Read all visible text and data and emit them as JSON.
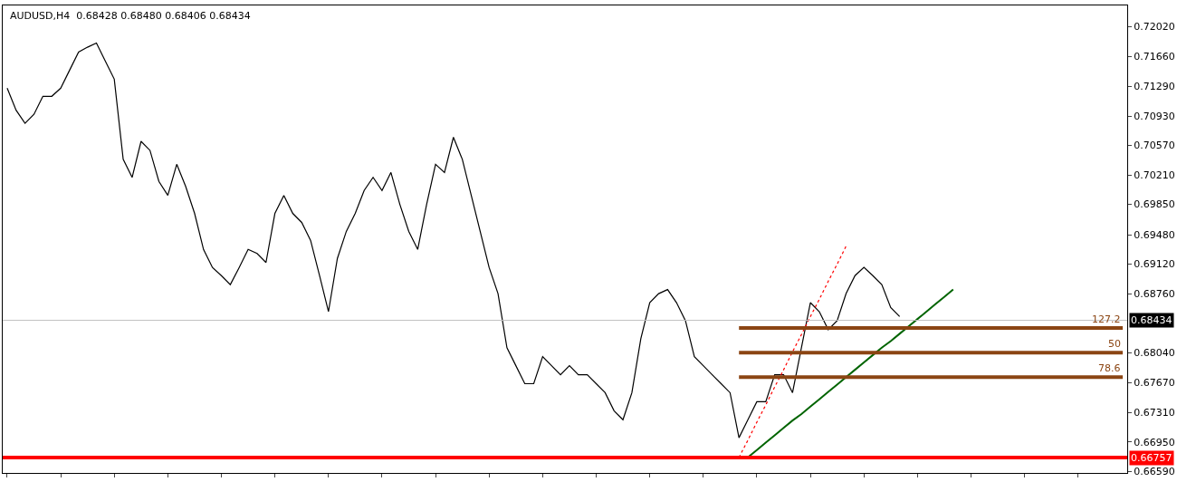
{
  "chart_data": {
    "type": "line",
    "title": "AUDUSD,H4  0.68428 0.68480 0.68406 0.68434",
    "categories": [
      null,
      null,
      null,
      null,
      null,
      null,
      null,
      null,
      null,
      null,
      null,
      null,
      null,
      null,
      null,
      null,
      null,
      null,
      null,
      null,
      null,
      null,
      null,
      null,
      null,
      null,
      null,
      null,
      null,
      null,
      null,
      null,
      null,
      null,
      null,
      null,
      null,
      null,
      null,
      null,
      null,
      null,
      null,
      null,
      null,
      null,
      null,
      null,
      null,
      null,
      null,
      null,
      null,
      null,
      null,
      null,
      null,
      null,
      null,
      null,
      null,
      null,
      null,
      null,
      null,
      null,
      null,
      null,
      null,
      null,
      null,
      null,
      null,
      null,
      null,
      null,
      null,
      null,
      null,
      null,
      null,
      null,
      null,
      null,
      null,
      null,
      null,
      null,
      null,
      null,
      null,
      null,
      null,
      null,
      null,
      null,
      null,
      null,
      null,
      null,
      null,
      null,
      null,
      null,
      null,
      null,
      null,
      null,
      null,
      null,
      null,
      null,
      null,
      null,
      null,
      null,
      null,
      null,
      null,
      null,
      null,
      null,
      null,
      null,
      null,
      null
    ],
    "series": [
      {
        "color": "#000000",
        "values": [
          0.7127,
          0.71,
          0.7084,
          0.7095,
          0.7117,
          0.7117,
          0.7127,
          0.7149,
          0.7171,
          0.7177,
          0.7182,
          0.716,
          0.7138,
          0.704,
          0.7018,
          0.7062,
          0.7051,
          0.7013,
          0.6996,
          0.7034,
          0.7007,
          0.6974,
          0.693,
          0.6908,
          0.6898,
          0.6887,
          0.6908,
          0.693,
          0.6925,
          0.6914,
          0.6974,
          0.6996,
          0.6974,
          0.6963,
          0.6941,
          0.6898,
          0.6854,
          0.6919,
          0.6952,
          0.6974,
          0.7002,
          0.7018,
          0.7002,
          0.7024,
          0.6985,
          0.6952,
          0.693,
          0.6985,
          0.7034,
          0.7024,
          0.7067,
          0.704,
          0.6996,
          0.6952,
          0.6908,
          0.6876,
          0.681,
          0.6788,
          0.6766,
          0.6766,
          0.6799,
          0.6788,
          0.6777,
          0.6788,
          0.6777,
          0.6777,
          0.6766,
          0.6755,
          0.6733,
          0.6722,
          0.6755,
          0.6821,
          0.6865,
          0.6876,
          0.6881,
          0.6865,
          0.6843,
          0.6799,
          0.6788,
          0.6777,
          0.6766,
          0.6755,
          0.67,
          0.6722,
          0.6744,
          0.6744,
          0.6777,
          0.6777,
          0.6755,
          0.681,
          0.6865,
          0.6854,
          0.6832,
          0.6843,
          0.6876,
          0.6898,
          0.6908,
          0.6898,
          0.6887,
          0.6859,
          0.6848,
          null,
          null,
          null,
          null,
          null,
          null,
          null,
          null,
          null,
          null,
          null,
          null,
          null,
          null,
          null,
          null,
          null,
          null,
          null,
          null,
          null,
          null,
          null,
          null,
          null
        ]
      },
      {
        "color": "#006400",
        "values": [
          null,
          null,
          null,
          null,
          null,
          null,
          null,
          null,
          null,
          null,
          null,
          null,
          null,
          null,
          null,
          null,
          null,
          null,
          null,
          null,
          null,
          null,
          null,
          null,
          null,
          null,
          null,
          null,
          null,
          null,
          null,
          null,
          null,
          null,
          null,
          null,
          null,
          null,
          null,
          null,
          null,
          null,
          null,
          null,
          null,
          null,
          null,
          null,
          null,
          null,
          null,
          null,
          null,
          null,
          null,
          null,
          null,
          null,
          null,
          null,
          null,
          null,
          null,
          null,
          null,
          null,
          null,
          null,
          null,
          null,
          null,
          null,
          null,
          null,
          null,
          null,
          null,
          null,
          null,
          null,
          null,
          null,
          null,
          0.6676,
          0.6685,
          0.6694,
          0.6703,
          0.6712,
          0.6721,
          0.6729,
          0.6738,
          0.6747,
          0.6756,
          0.6765,
          0.6774,
          0.6783,
          0.6792,
          0.6801,
          0.681,
          0.6818,
          0.6827,
          0.6836,
          0.6845,
          0.6854,
          0.6863,
          0.6872,
          0.6881,
          null,
          null,
          null,
          null,
          null,
          null,
          null,
          null,
          null,
          null,
          null,
          null,
          null,
          null,
          null,
          null,
          null,
          null,
          null
        ]
      },
      {
        "color": "#ff0000",
        "line_style": "dotted",
        "values": [
          null,
          null,
          null,
          null,
          null,
          null,
          null,
          null,
          null,
          null,
          null,
          null,
          null,
          null,
          null,
          null,
          null,
          null,
          null,
          null,
          null,
          null,
          null,
          null,
          null,
          null,
          null,
          null,
          null,
          null,
          null,
          null,
          null,
          null,
          null,
          null,
          null,
          null,
          null,
          null,
          null,
          null,
          null,
          null,
          null,
          null,
          null,
          null,
          null,
          null,
          null,
          null,
          null,
          null,
          null,
          null,
          null,
          null,
          null,
          null,
          null,
          null,
          null,
          null,
          null,
          null,
          null,
          null,
          null,
          null,
          null,
          null,
          null,
          null,
          null,
          null,
          null,
          null,
          null,
          null,
          null,
          null,
          0.6676,
          0.6697,
          0.6719,
          0.674,
          0.6762,
          0.6783,
          0.6805,
          0.6826,
          0.6848,
          0.6869,
          0.6891,
          0.6912,
          0.6934,
          null,
          null,
          null,
          null,
          null,
          null,
          null,
          null,
          null,
          null,
          null,
          null,
          null,
          null,
          null,
          null,
          null,
          null,
          null,
          null,
          null,
          null,
          null,
          null,
          null,
          null,
          null,
          null,
          null,
          null,
          null
        ]
      },
      {
        "name": "127.2",
        "color": "#8b4513",
        "values": [
          null,
          null,
          null,
          null,
          null,
          null,
          null,
          null,
          null,
          null,
          null,
          null,
          null,
          null,
          null,
          null,
          null,
          null,
          null,
          null,
          null,
          null,
          null,
          null,
          null,
          null,
          null,
          null,
          null,
          null,
          null,
          null,
          null,
          null,
          null,
          null,
          null,
          null,
          null,
          null,
          null,
          null,
          null,
          null,
          null,
          null,
          null,
          null,
          null,
          null,
          null,
          null,
          null,
          null,
          null,
          null,
          null,
          null,
          null,
          null,
          null,
          null,
          null,
          null,
          null,
          null,
          null,
          null,
          null,
          null,
          null,
          null,
          null,
          null,
          null,
          null,
          null,
          null,
          null,
          null,
          null,
          null,
          0.6834,
          0.6834,
          0.6834,
          0.6834,
          0.6834,
          0.6834,
          0.6834,
          0.6834,
          0.6834,
          0.6834,
          0.6834,
          0.6834,
          0.6834,
          0.6834,
          0.6834,
          0.6834,
          0.6834,
          0.6834,
          0.6834,
          0.6834,
          0.6834,
          0.6834,
          0.6834,
          0.6834,
          0.6834,
          0.6834,
          0.6834,
          0.6834,
          0.6834,
          0.6834,
          0.6834,
          0.6834,
          0.6834,
          0.6834,
          0.6834,
          0.6834,
          0.6834,
          0.6834,
          0.6834,
          0.6834,
          0.6834,
          0.6834,
          0.6834,
          0.6834
        ]
      },
      {
        "name": "50",
        "color": "#8b4513",
        "values": [
          null,
          null,
          null,
          null,
          null,
          null,
          null,
          null,
          null,
          null,
          null,
          null,
          null,
          null,
          null,
          null,
          null,
          null,
          null,
          null,
          null,
          null,
          null,
          null,
          null,
          null,
          null,
          null,
          null,
          null,
          null,
          null,
          null,
          null,
          null,
          null,
          null,
          null,
          null,
          null,
          null,
          null,
          null,
          null,
          null,
          null,
          null,
          null,
          null,
          null,
          null,
          null,
          null,
          null,
          null,
          null,
          null,
          null,
          null,
          null,
          null,
          null,
          null,
          null,
          null,
          null,
          null,
          null,
          null,
          null,
          null,
          null,
          null,
          null,
          null,
          null,
          null,
          null,
          null,
          null,
          null,
          null,
          0.6804,
          0.6804,
          0.6804,
          0.6804,
          0.6804,
          0.6804,
          0.6804,
          0.6804,
          0.6804,
          0.6804,
          0.6804,
          0.6804,
          0.6804,
          0.6804,
          0.6804,
          0.6804,
          0.6804,
          0.6804,
          0.6804,
          0.6804,
          0.6804,
          0.6804,
          0.6804,
          0.6804,
          0.6804,
          0.6804,
          0.6804,
          0.6804,
          0.6804,
          0.6804,
          0.6804,
          0.6804,
          0.6804,
          0.6804,
          0.6804,
          0.6804,
          0.6804,
          0.6804,
          0.6804,
          0.6804,
          0.6804,
          0.6804,
          0.6804,
          0.6804
        ]
      },
      {
        "name": "78.6",
        "color": "#8b4513",
        "values": [
          null,
          null,
          null,
          null,
          null,
          null,
          null,
          null,
          null,
          null,
          null,
          null,
          null,
          null,
          null,
          null,
          null,
          null,
          null,
          null,
          null,
          null,
          null,
          null,
          null,
          null,
          null,
          null,
          null,
          null,
          null,
          null,
          null,
          null,
          null,
          null,
          null,
          null,
          null,
          null,
          null,
          null,
          null,
          null,
          null,
          null,
          null,
          null,
          null,
          null,
          null,
          null,
          null,
          null,
          null,
          null,
          null,
          null,
          null,
          null,
          null,
          null,
          null,
          null,
          null,
          null,
          null,
          null,
          null,
          null,
          null,
          null,
          null,
          null,
          null,
          null,
          null,
          null,
          null,
          null,
          null,
          null,
          0.6774,
          0.6774,
          0.6774,
          0.6774,
          0.6774,
          0.6774,
          0.6774,
          0.6774,
          0.6774,
          0.6774,
          0.6774,
          0.6774,
          0.6774,
          0.6774,
          0.6774,
          0.6774,
          0.6774,
          0.6774,
          0.6774,
          0.6774,
          0.6774,
          0.6774,
          0.6774,
          0.6774,
          0.6774,
          0.6774,
          0.6774,
          0.6774,
          0.6774,
          0.6774,
          0.6774,
          0.6774,
          0.6774,
          0.6774,
          0.6774,
          0.6774,
          0.6774,
          0.6774,
          0.6774,
          0.6774,
          0.6774,
          0.6774,
          0.6774,
          0.6774
        ]
      }
    ],
    "ylim": [
      0.6657,
      0.7228
    ],
    "yticks": [
      {
        "value": 0.7202,
        "label": "0.72020"
      },
      {
        "value": 0.7166,
        "label": "0.71660"
      },
      {
        "value": 0.7129,
        "label": "0.71290"
      },
      {
        "value": 0.7093,
        "label": "0.70930"
      },
      {
        "value": 0.7057,
        "label": "0.70570"
      },
      {
        "value": 0.7021,
        "label": "0.70210"
      },
      {
        "value": 0.6985,
        "label": "0.69850"
      },
      {
        "value": 0.6948,
        "label": "0.69480"
      },
      {
        "value": 0.6912,
        "label": "0.69120"
      },
      {
        "value": 0.6876,
        "label": "0.68760"
      },
      {
        "value": 0.6804,
        "label": "0.68040"
      },
      {
        "value": 0.6767,
        "label": "0.67670"
      },
      {
        "value": 0.6731,
        "label": "0.67310"
      },
      {
        "value": 0.6695,
        "label": "0.66950"
      },
      {
        "value": 0.6659,
        "label": "0.66590"
      }
    ],
    "ref_lines": [
      {
        "axis": "y",
        "value": 0.68434,
        "label": "0.68434",
        "color": "#c0c0c0"
      },
      {
        "axis": "y",
        "value": 0.66757,
        "label": "0.66757",
        "color": "#ff0000"
      }
    ],
    "tick_labels": "y",
    "legend": false
  }
}
